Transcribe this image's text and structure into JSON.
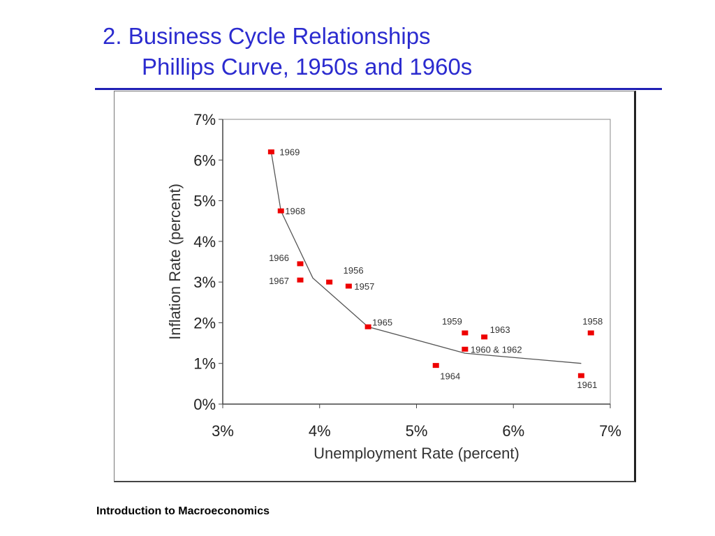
{
  "slide": {
    "title_line1": "2.  Business Cycle Relationships",
    "title_line2": "Phillips Curve, 1950s and 1960s",
    "footer": "Introduction to Macroeconomics",
    "colors": {
      "title": "#2b2bcf",
      "rule": "#1f1fb4",
      "points": "#ee0000",
      "curve": "#555555"
    }
  },
  "chart_data": {
    "type": "scatter",
    "title": "",
    "xlabel": "Unemployment Rate (percent)",
    "ylabel": "Inflation Rate (percent)",
    "xlim": [
      3,
      7
    ],
    "ylim": [
      0,
      7
    ],
    "x_ticks": [
      "3%",
      "4%",
      "5%",
      "6%",
      "7%"
    ],
    "y_ticks": [
      "0%",
      "1%",
      "2%",
      "3%",
      "4%",
      "5%",
      "6%",
      "7%"
    ],
    "grid": false,
    "points": [
      {
        "label": "1969",
        "x": 3.5,
        "y": 6.2
      },
      {
        "label": "1968",
        "x": 3.6,
        "y": 4.75
      },
      {
        "label": "1966",
        "x": 3.8,
        "y": 3.45
      },
      {
        "label": "1967",
        "x": 3.8,
        "y": 3.05
      },
      {
        "label": "1956",
        "x": 4.1,
        "y": 3.0
      },
      {
        "label": "1957",
        "x": 4.3,
        "y": 2.9
      },
      {
        "label": "1965",
        "x": 4.5,
        "y": 1.9
      },
      {
        "label": "1959",
        "x": 5.5,
        "y": 1.75
      },
      {
        "label": "1963",
        "x": 5.7,
        "y": 1.65
      },
      {
        "label": "1960 & 1962",
        "x": 5.5,
        "y": 1.35
      },
      {
        "label": "1964",
        "x": 5.2,
        "y": 0.95
      },
      {
        "label": "1958",
        "x": 6.8,
        "y": 1.75
      },
      {
        "label": "1961",
        "x": 6.7,
        "y": 0.7
      }
    ],
    "curve": [
      {
        "x": 3.5,
        "y": 6.2
      },
      {
        "x": 3.6,
        "y": 4.75
      },
      {
        "x": 3.93,
        "y": 3.1
      },
      {
        "x": 4.5,
        "y": 1.9
      },
      {
        "x": 5.5,
        "y": 1.25
      },
      {
        "x": 6.7,
        "y": 1.0
      }
    ]
  }
}
